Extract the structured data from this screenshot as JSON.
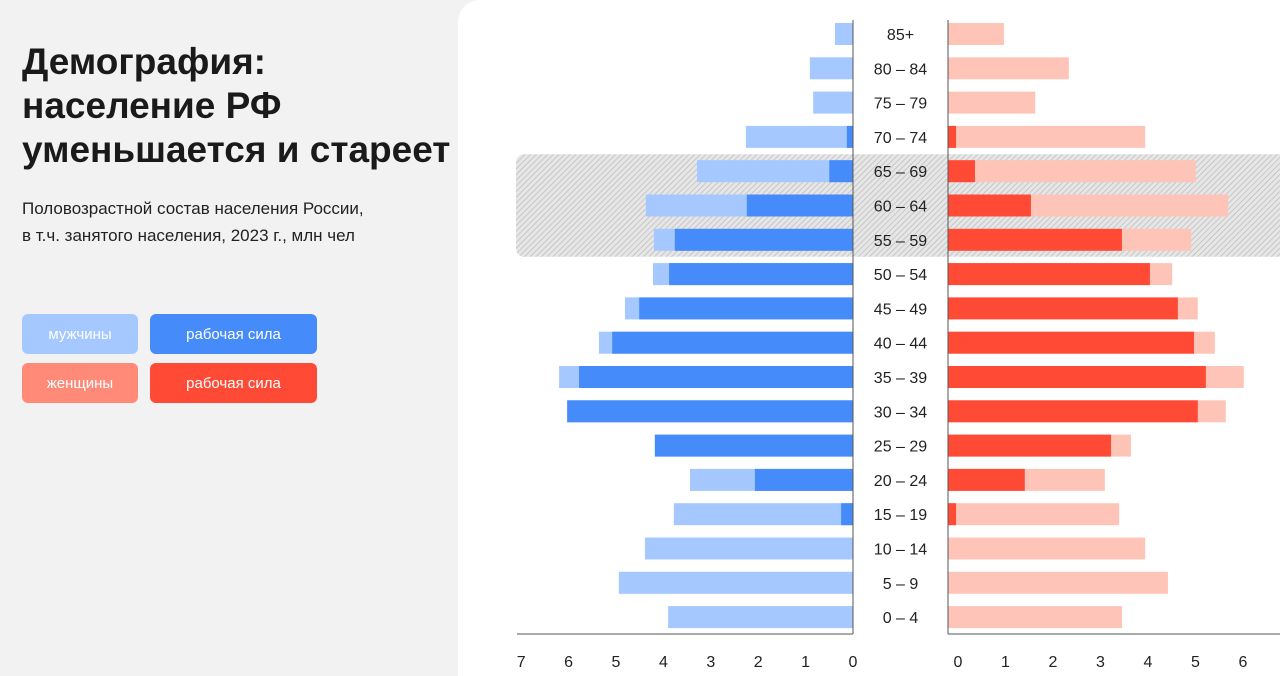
{
  "title": "Демография: население РФ уменьшается и стареет",
  "title_lines": [
    "Демография:",
    "население РФ",
    "уменьшается и стареет"
  ],
  "subtitle_lines": [
    "Половозрастной состав населения России,",
    "в т.ч. занятого населения, 2023 г., млн чел"
  ],
  "legend": [
    {
      "label": "мужчины",
      "color": "#a4c8ff"
    },
    {
      "label": "рабочая сила",
      "color": "#468bfa"
    },
    {
      "label": "женщины",
      "color": "#ff8a77"
    },
    {
      "label": "рабочая сила",
      "color": "#ff4a36"
    }
  ],
  "chart_data": {
    "type": "bar",
    "orientation": "population-pyramid",
    "categories": [
      "85+",
      "80 – 84",
      "75 – 79",
      "70 – 74",
      "65 – 69",
      "60 – 64",
      "55 – 59",
      "50 – 54",
      "45 – 49",
      "40 – 44",
      "35 – 39",
      "30 – 34",
      "25 – 29",
      "20 – 24",
      "15 – 19",
      "10 – 14",
      "5 – 9",
      "0 – 4"
    ],
    "series": [
      {
        "name": "мужчины",
        "color": "#a4c8ff",
        "values": [
          0.38,
          0.91,
          0.84,
          2.26,
          3.29,
          4.37,
          4.2,
          4.22,
          4.81,
          5.36,
          6.2,
          6.03,
          4.18,
          3.44,
          3.78,
          4.39,
          4.94,
          3.9
        ]
      },
      {
        "name": "мужчины — рабочая сила",
        "color": "#468bfa",
        "values": [
          0,
          0,
          0,
          0.13,
          0.5,
          2.24,
          3.76,
          3.88,
          4.51,
          5.08,
          5.78,
          6.03,
          4.18,
          2.07,
          0.25,
          0,
          0,
          0
        ]
      },
      {
        "name": "женщины",
        "color": "#ffc4b8",
        "values": [
          1.18,
          2.55,
          1.84,
          4.16,
          5.23,
          5.91,
          5.13,
          4.73,
          5.27,
          5.63,
          6.24,
          5.86,
          3.86,
          3.31,
          3.61,
          4.16,
          4.64,
          3.67
        ]
      },
      {
        "name": "женщины — рабочая сила",
        "color": "#ff4a36",
        "values": [
          0,
          0,
          0,
          0.17,
          0.57,
          1.75,
          3.67,
          4.26,
          4.85,
          5.19,
          5.44,
          5.27,
          3.44,
          1.62,
          0.17,
          0,
          0,
          0
        ]
      }
    ],
    "left_axis_ticks": [
      7,
      6,
      5,
      4,
      3,
      2,
      1,
      0
    ],
    "right_axis_ticks": [
      0,
      1,
      2,
      3,
      4,
      5,
      6
    ],
    "xlim_left": [
      0,
      7
    ],
    "xlim_right": [
      0,
      6.8
    ],
    "highlighted_categories": [
      "65 – 69",
      "60 – 64",
      "55 – 59"
    ]
  }
}
